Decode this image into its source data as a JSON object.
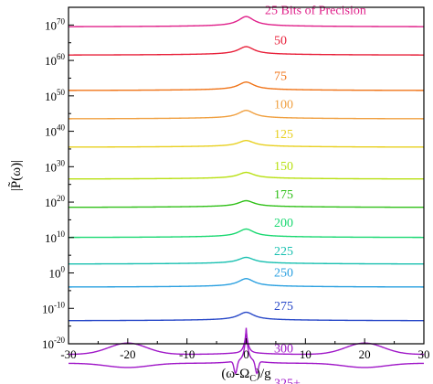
{
  "chart_data": {
    "type": "line",
    "title": "",
    "xlabel_main": "(ω-Ω",
    "xlabel_sub": "C",
    "xlabel_tail": ")/g",
    "ylabel": "|P̃(ω)|",
    "xlim": [
      -30,
      30
    ],
    "ylim_exp": [
      -20,
      75
    ],
    "y_scale": "log",
    "grid": false,
    "x_ticks": [
      "-30",
      "-20",
      "-10",
      "0",
      "10",
      "20",
      "30"
    ],
    "x_tick_values": [
      -30,
      -20,
      -10,
      0,
      10,
      20,
      30
    ],
    "y_tick_exponents": [
      -20,
      -10,
      0,
      10,
      20,
      30,
      40,
      50,
      60,
      70
    ],
    "y_tick_labels": [
      "-20",
      "-10",
      "0",
      "10",
      "20",
      "30",
      "40",
      "50",
      "60",
      "70"
    ],
    "y_tick_base": "10",
    "series": [
      {
        "name": "25 Bits of Precision",
        "baseline_exp": 69.5,
        "peak_exp": 72.0,
        "color": "#e0208a"
      },
      {
        "name": "50",
        "baseline_exp": 61.5,
        "peak_exp": 63.5,
        "color": "#e8203a"
      },
      {
        "name": "75",
        "baseline_exp": 51.5,
        "peak_exp": 53.5,
        "color": "#f07418"
      },
      {
        "name": "100",
        "baseline_exp": 43.5,
        "peak_exp": 45.5,
        "color": "#f0a040"
      },
      {
        "name": "125",
        "baseline_exp": 35.5,
        "peak_exp": 37.0,
        "color": "#e8d020"
      },
      {
        "name": "150",
        "baseline_exp": 26.5,
        "peak_exp": 28.0,
        "color": "#b8e010"
      },
      {
        "name": "175",
        "baseline_exp": 18.5,
        "peak_exp": 20.0,
        "color": "#30c018"
      },
      {
        "name": "200",
        "baseline_exp": 10.0,
        "peak_exp": 12.0,
        "color": "#18d870"
      },
      {
        "name": "225",
        "baseline_exp": 2.5,
        "peak_exp": 4.0,
        "color": "#18c0b0"
      },
      {
        "name": "250",
        "baseline_exp": -4.0,
        "peak_exp": -2.0,
        "color": "#2aa0e0"
      },
      {
        "name": "275",
        "baseline_exp": -13.5,
        "peak_exp": -11.5,
        "color": "#2848c8"
      },
      {
        "name": "300",
        "baseline_exp": -23.0,
        "peak_exp": -17.0,
        "color": "#a018c8"
      },
      {
        "name": "325+",
        "baseline_exp": -25.5,
        "peak_exp": -17.0,
        "color": "#a018c8"
      }
    ]
  }
}
